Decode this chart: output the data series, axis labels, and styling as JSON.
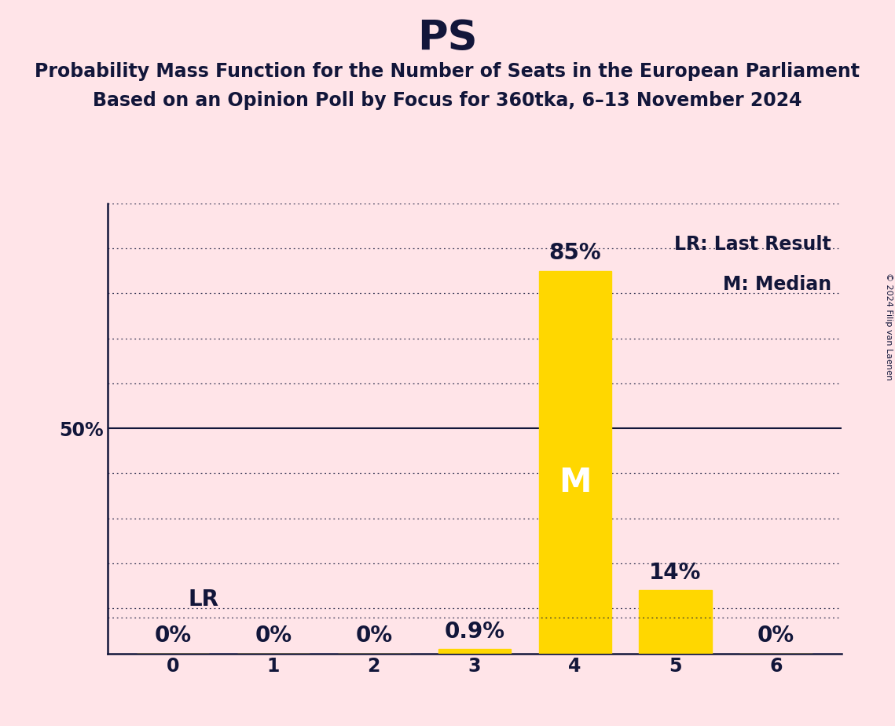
{
  "title": "PS",
  "subtitle_line1": "Probability Mass Function for the Number of Seats in the European Parliament",
  "subtitle_line2": "Based on an Opinion Poll by Focus for 360tka, 6–13 November 2024",
  "copyright_text": "© 2024 Filip van Laenen",
  "seats": [
    0,
    1,
    2,
    3,
    4,
    5,
    6
  ],
  "probabilities": [
    0.0,
    0.0,
    0.0,
    0.9,
    85.0,
    14.0,
    0.0
  ],
  "bar_color": "#FFD700",
  "background_color": "#FFE4E8",
  "text_color": "#12163a",
  "title_fontsize": 38,
  "subtitle_fontsize": 17,
  "tick_fontsize": 17,
  "bar_label_fontsize": 20,
  "legend_fontsize": 17,
  "median_seat": 4,
  "last_result_seat": 4,
  "last_result_pct": 8.0,
  "ylim": [
    0,
    100
  ],
  "yticks": [
    0,
    10,
    20,
    30,
    40,
    50,
    60,
    70,
    80,
    90,
    100
  ],
  "y50_label": "50%",
  "legend_lr": "LR: Last Result",
  "legend_m": "M: Median",
  "lr_label": "LR",
  "m_label": "M",
  "bar_width": 0.72
}
